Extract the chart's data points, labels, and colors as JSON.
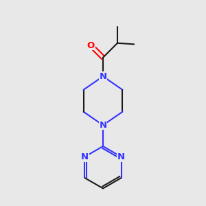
{
  "background_color": "#e8e8e8",
  "bond_color": "#1a1a1a",
  "nitrogen_color": "#3333ff",
  "oxygen_color": "#ff0000",
  "line_width": 1.5,
  "figsize": [
    3.0,
    3.0
  ],
  "dpi": 100,
  "xlim": [
    0.15,
    0.85
  ],
  "ylim": [
    0.05,
    0.97
  ]
}
